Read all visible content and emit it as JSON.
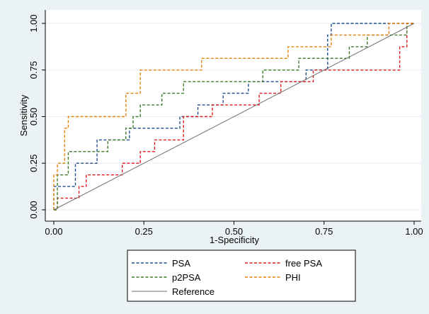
{
  "chart_data": {
    "type": "line",
    "xlabel": "1-Specificity",
    "ylabel": "Sensitivity",
    "xlim": [
      0,
      1
    ],
    "ylim": [
      0,
      1
    ],
    "x_ticks": [
      "0.00",
      "0.25",
      "0.50",
      "0.75",
      "1.00"
    ],
    "y_ticks": [
      "0.00",
      "0.25",
      "0.50",
      "0.75",
      "1.00"
    ],
    "grid": "horizontal",
    "legend_position": "bottom",
    "series": [
      {
        "name": "PSA",
        "color": "#1f4e8c",
        "style": "dashed",
        "points": [
          [
            0,
            0
          ],
          [
            0,
            0.125
          ],
          [
            0.06,
            0.125
          ],
          [
            0.06,
            0.25
          ],
          [
            0.12,
            0.25
          ],
          [
            0.12,
            0.375
          ],
          [
            0.21,
            0.375
          ],
          [
            0.21,
            0.4375
          ],
          [
            0.35,
            0.4375
          ],
          [
            0.35,
            0.5
          ],
          [
            0.4,
            0.5
          ],
          [
            0.4,
            0.5625
          ],
          [
            0.47,
            0.5625
          ],
          [
            0.47,
            0.625
          ],
          [
            0.54,
            0.625
          ],
          [
            0.54,
            0.6875
          ],
          [
            0.68,
            0.6875
          ],
          [
            0.7,
            0.6875
          ],
          [
            0.7,
            0.75
          ],
          [
            0.76,
            0.75
          ],
          [
            0.76,
            0.9375
          ],
          [
            0.77,
            0.9375
          ],
          [
            0.77,
            1
          ],
          [
            1,
            1
          ]
        ]
      },
      {
        "name": "free PSA",
        "color": "#e41a1c",
        "style": "dashed",
        "points": [
          [
            0,
            0
          ],
          [
            0.01,
            0
          ],
          [
            0.01,
            0.0625
          ],
          [
            0.07,
            0.0625
          ],
          [
            0.07,
            0.125
          ],
          [
            0.09,
            0.125
          ],
          [
            0.09,
            0.1875
          ],
          [
            0.19,
            0.1875
          ],
          [
            0.19,
            0.25
          ],
          [
            0.24,
            0.25
          ],
          [
            0.24,
            0.3125
          ],
          [
            0.28,
            0.3125
          ],
          [
            0.28,
            0.375
          ],
          [
            0.36,
            0.375
          ],
          [
            0.36,
            0.5
          ],
          [
            0.44,
            0.5
          ],
          [
            0.44,
            0.5625
          ],
          [
            0.57,
            0.5625
          ],
          [
            0.57,
            0.625
          ],
          [
            0.63,
            0.625
          ],
          [
            0.63,
            0.6875
          ],
          [
            0.72,
            0.6875
          ],
          [
            0.72,
            0.75
          ],
          [
            0.96,
            0.75
          ],
          [
            0.96,
            0.875
          ],
          [
            0.98,
            0.875
          ],
          [
            0.98,
            1
          ],
          [
            1,
            1
          ]
        ]
      },
      {
        "name": "p2PSA",
        "color": "#3d7a26",
        "style": "dashed",
        "points": [
          [
            0,
            0
          ],
          [
            0.01,
            0
          ],
          [
            0.01,
            0.1875
          ],
          [
            0.04,
            0.1875
          ],
          [
            0.04,
            0.3125
          ],
          [
            0.15,
            0.3125
          ],
          [
            0.15,
            0.375
          ],
          [
            0.2,
            0.375
          ],
          [
            0.2,
            0.4375
          ],
          [
            0.22,
            0.4375
          ],
          [
            0.22,
            0.5
          ],
          [
            0.24,
            0.5
          ],
          [
            0.24,
            0.5625
          ],
          [
            0.3,
            0.5625
          ],
          [
            0.3,
            0.625
          ],
          [
            0.36,
            0.625
          ],
          [
            0.36,
            0.6875
          ],
          [
            0.58,
            0.6875
          ],
          [
            0.58,
            0.75
          ],
          [
            0.68,
            0.75
          ],
          [
            0.68,
            0.8125
          ],
          [
            0.82,
            0.8125
          ],
          [
            0.82,
            0.875
          ],
          [
            0.87,
            0.875
          ],
          [
            0.87,
            0.9375
          ],
          [
            0.98,
            0.9375
          ],
          [
            0.98,
            1
          ],
          [
            1,
            1
          ]
        ]
      },
      {
        "name": "PHI",
        "color": "#e8820c",
        "style": "dashed",
        "points": [
          [
            0,
            0
          ],
          [
            0,
            0.1875
          ],
          [
            0.01,
            0.1875
          ],
          [
            0.01,
            0.25
          ],
          [
            0.03,
            0.25
          ],
          [
            0.03,
            0.4375
          ],
          [
            0.04,
            0.4375
          ],
          [
            0.04,
            0.5
          ],
          [
            0.2,
            0.5
          ],
          [
            0.2,
            0.625
          ],
          [
            0.24,
            0.625
          ],
          [
            0.24,
            0.75
          ],
          [
            0.41,
            0.75
          ],
          [
            0.41,
            0.8125
          ],
          [
            0.65,
            0.8125
          ],
          [
            0.65,
            0.875
          ],
          [
            0.77,
            0.875
          ],
          [
            0.77,
            0.9375
          ],
          [
            0.93,
            0.9375
          ],
          [
            0.93,
            1
          ],
          [
            1,
            1
          ]
        ]
      },
      {
        "name": "Reference",
        "color": "#707070",
        "style": "solid",
        "points": [
          [
            0,
            0
          ],
          [
            1,
            1
          ]
        ]
      }
    ]
  }
}
